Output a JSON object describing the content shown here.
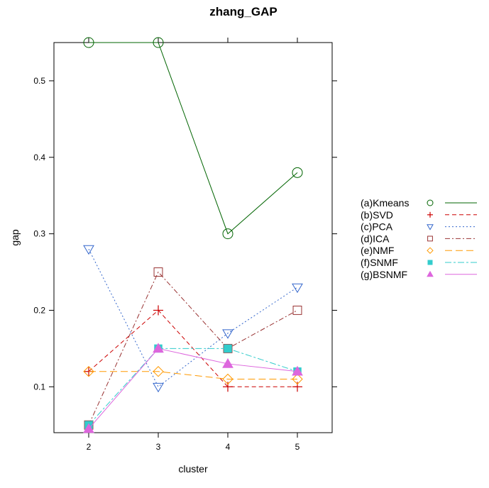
{
  "chart_data": {
    "type": "line",
    "title": "zhang_GAP",
    "xlabel": "cluster",
    "ylabel": "gap",
    "x": [
      2,
      3,
      4,
      5
    ],
    "xlim": [
      1.5,
      5.5
    ],
    "ylim": [
      0.04,
      0.55
    ],
    "xticks": [
      "2",
      "3",
      "4",
      "5"
    ],
    "yticks": [
      "0.1",
      "0.2",
      "0.3",
      "0.4",
      "0.5"
    ],
    "grid": false,
    "legend_position": "right",
    "series": [
      {
        "name": "(a)Kmeans",
        "values": [
          0.55,
          0.55,
          0.3,
          0.38
        ],
        "color": "#006400",
        "dash": "solid",
        "marker": "circle"
      },
      {
        "name": "(b)SVD",
        "values": [
          0.12,
          0.2,
          0.1,
          0.1
        ],
        "color": "#cc0000",
        "dash": "dashed",
        "marker": "plus"
      },
      {
        "name": "(c)PCA",
        "values": [
          0.28,
          0.1,
          0.17,
          0.23
        ],
        "color": "#3366cc",
        "dash": "dotted",
        "marker": "triangle-down"
      },
      {
        "name": "(d)ICA",
        "values": [
          0.05,
          0.25,
          0.15,
          0.2
        ],
        "color": "#993333",
        "dash": "dashdot",
        "marker": "square"
      },
      {
        "name": "(e)NMF",
        "values": [
          0.12,
          0.12,
          0.11,
          0.11
        ],
        "color": "#ff9900",
        "dash": "longdash",
        "marker": "diamond"
      },
      {
        "name": "(f)SNMF",
        "values": [
          0.05,
          0.15,
          0.15,
          0.12
        ],
        "color": "#33cccc",
        "dash": "twodash",
        "marker": "filled-square"
      },
      {
        "name": "(g)BSNMF",
        "values": [
          0.045,
          0.15,
          0.13,
          0.12
        ],
        "color": "#dd66dd",
        "dash": "solid",
        "marker": "filled-triangle"
      }
    ]
  }
}
